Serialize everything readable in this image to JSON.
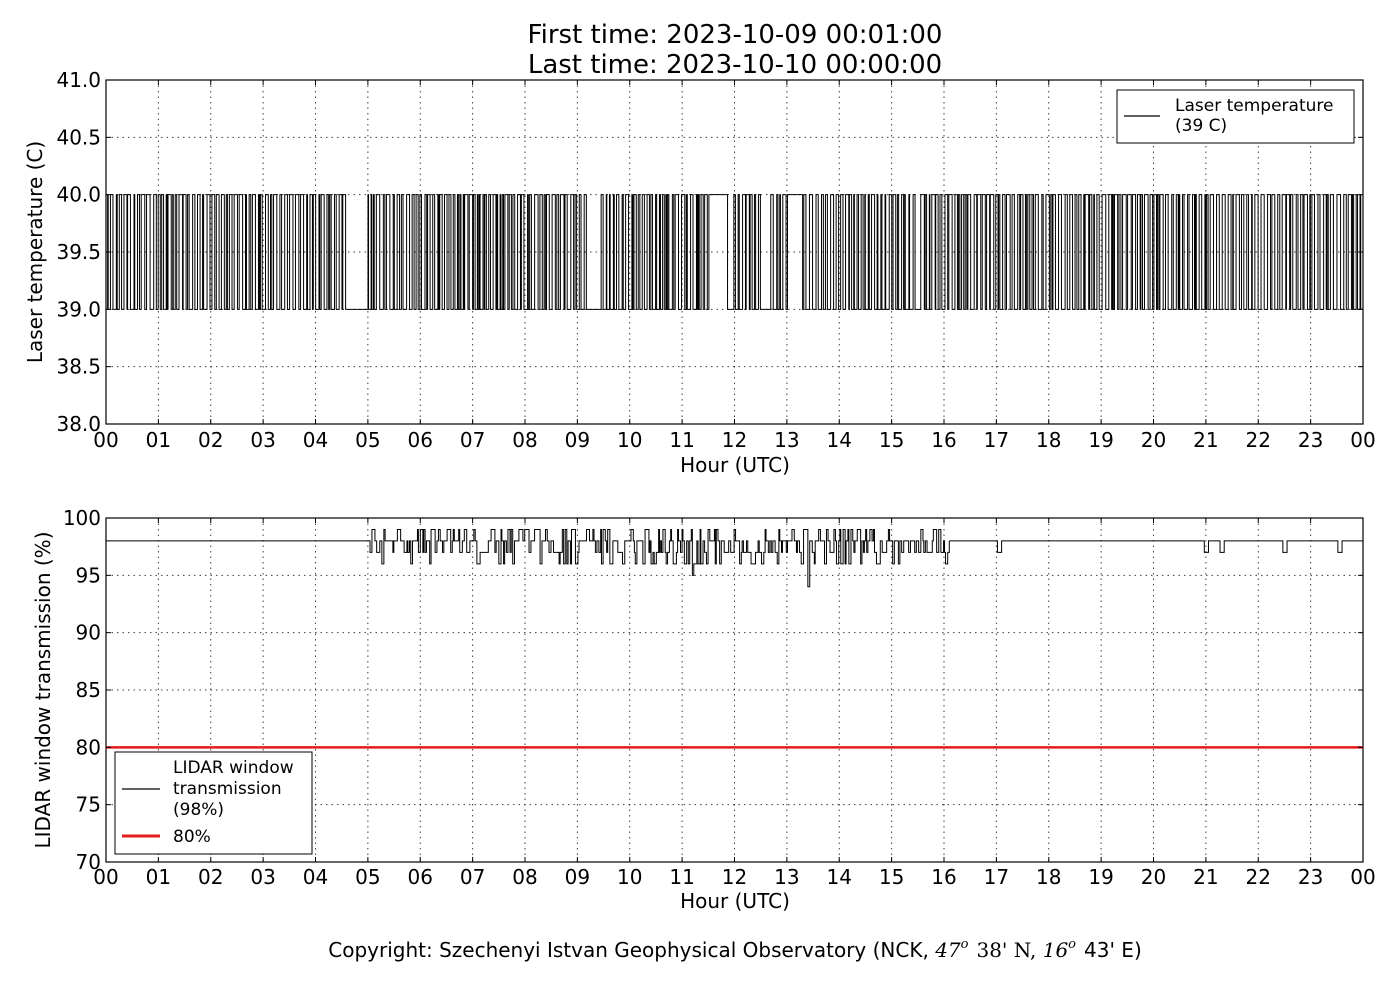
{
  "header": {
    "first_time": "First time: 2023-10-09 00:01:00",
    "last_time": "Last time: 2023-10-10 00:00:00"
  },
  "footer": {
    "copyright_main": "Copyright: Szechenyi Istvan Geophysical Observatory (NCK, ",
    "lat_deg": "47",
    "lat_deg_sup": "o",
    "lat_min": "38' N, ",
    "lon_deg": "16",
    "lon_deg_sup": "o",
    "lon_min": "43' E)"
  },
  "chart_data": [
    {
      "type": "line",
      "ylabel": "Laser temperature (C)",
      "xlabel": "Hour (UTC)",
      "xlim": [
        0,
        24
      ],
      "ylim": [
        38.0,
        41.0
      ],
      "x_tick_labels": [
        "00",
        "01",
        "02",
        "03",
        "04",
        "05",
        "06",
        "07",
        "08",
        "09",
        "10",
        "11",
        "12",
        "13",
        "14",
        "15",
        "16",
        "17",
        "18",
        "19",
        "20",
        "21",
        "22",
        "23",
        "00"
      ],
      "y_ticks": [
        "38.0",
        "38.5",
        "39.0",
        "39.5",
        "40.0",
        "40.5",
        "41.0"
      ],
      "grid": true,
      "legend_position": "top-right",
      "series": [
        {
          "name": "Laser temperature\n(39 C)",
          "legend_line1": "Laser temperature",
          "legend_line2": "(39 C)",
          "color": "#000000",
          "description": "binary switching between 39.0 and 40.0 throughout the day",
          "low_value": 39.0,
          "high_value": 40.0,
          "low_periods_hours": [
            [
              4.55,
              4.95
            ],
            [
              9.2,
              9.45
            ],
            [
              11.85,
              11.95
            ],
            [
              12.55,
              12.65
            ],
            [
              15.45,
              15.55
            ]
          ],
          "high_periods_hours": [
            [
              11.5,
              11.85
            ],
            [
              13.0,
              13.3
            ]
          ]
        }
      ]
    },
    {
      "type": "line",
      "ylabel": "LIDAR window transmission (%)",
      "xlabel": "Hour (UTC)",
      "xlim": [
        0,
        24
      ],
      "ylim": [
        70,
        100
      ],
      "x_tick_labels": [
        "00",
        "01",
        "02",
        "03",
        "04",
        "05",
        "06",
        "07",
        "08",
        "09",
        "10",
        "11",
        "12",
        "13",
        "14",
        "15",
        "16",
        "17",
        "18",
        "19",
        "20",
        "21",
        "22",
        "23",
        "00"
      ],
      "y_ticks": [
        "70",
        "75",
        "80",
        "85",
        "90",
        "95",
        "100"
      ],
      "grid": true,
      "legend_position": "lower-left",
      "series": [
        {
          "name": "LIDAR window\ntransmission\n(98%)",
          "legend_line1": "LIDAR window",
          "legend_line2": "transmission",
          "legend_line3": "(98%)",
          "color": "#000000",
          "baseline": 98,
          "noisy_period_hours": [
            5.0,
            16.1
          ],
          "noisy_range": [
            96,
            99
          ],
          "notable_dips": [
            {
              "hour": 7.1,
              "value": 96
            },
            {
              "hour": 11.2,
              "value": 95
            },
            {
              "hour": 13.4,
              "value": 94
            },
            {
              "hour": 17.05,
              "value": 97
            },
            {
              "hour": 21.0,
              "value": 97
            },
            {
              "hour": 21.3,
              "value": 97
            },
            {
              "hour": 22.5,
              "value": 97
            },
            {
              "hour": 23.55,
              "value": 97
            }
          ]
        },
        {
          "name": "80%",
          "legend_line1": "80%",
          "color": "#e41a1c",
          "value": 80
        }
      ]
    }
  ]
}
